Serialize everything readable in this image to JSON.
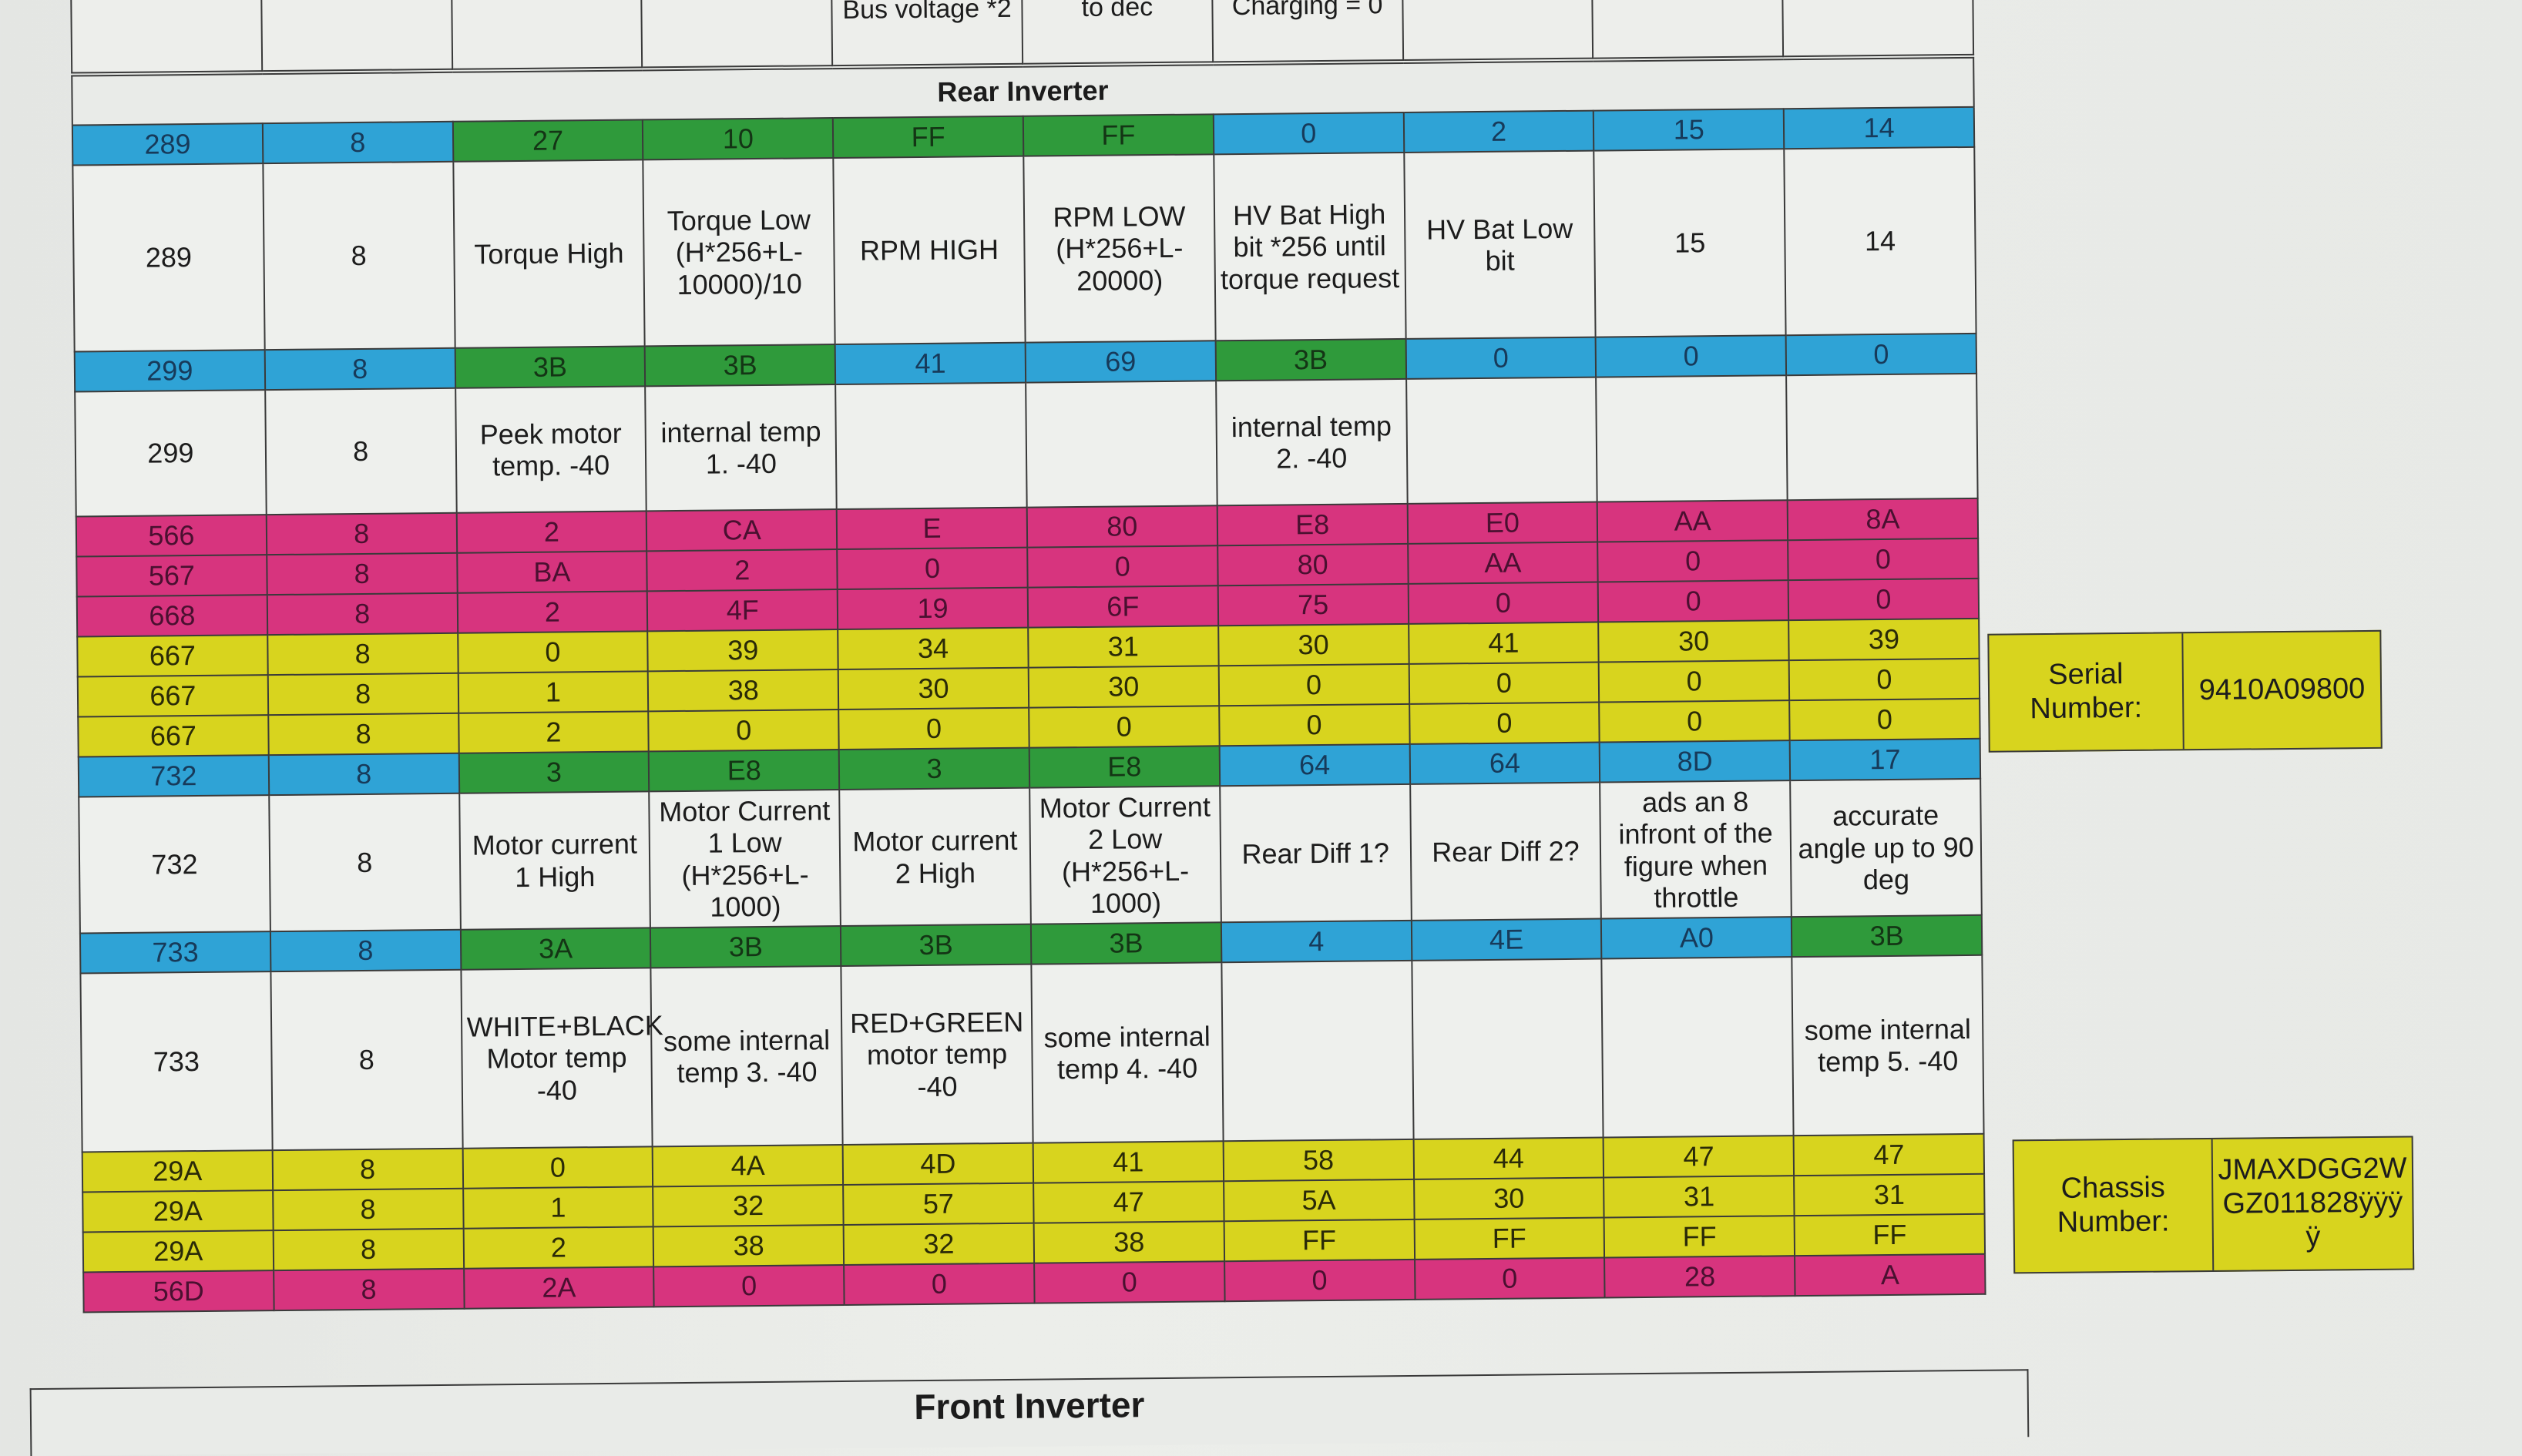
{
  "top_table": {
    "cells": [
      "",
      "",
      "",
      "",
      "Bus voltage *2",
      "to dec",
      "Charging = 0",
      "",
      "",
      ""
    ]
  },
  "section_title": "Rear Inverter",
  "colors": {
    "b": "#2fa3d6",
    "g": "#2f9a3b",
    "m": "#d7347e",
    "y": "#d8d41e"
  },
  "rows": [
    {
      "kind": "hex",
      "cells": [
        "289",
        "8",
        "27",
        "10",
        "FF",
        "FF",
        "0",
        "2",
        "15",
        "14"
      ],
      "colors": [
        "b",
        "b",
        "g",
        "g",
        "g",
        "g",
        "b",
        "b",
        "b",
        "b"
      ]
    },
    {
      "kind": "desc",
      "cells": [
        "289",
        "8",
        "Torque High",
        "Torque Low (H*256+L-10000)/10",
        "RPM HIGH",
        "RPM LOW (H*256+L-20000)",
        "HV Bat High bit *256 until torque request",
        "HV Bat Low bit",
        "15",
        "14"
      ]
    },
    {
      "kind": "hex",
      "cells": [
        "299",
        "8",
        "3B",
        "3B",
        "41",
        "69",
        "3B",
        "0",
        "0",
        "0"
      ],
      "colors": [
        "b",
        "b",
        "g",
        "g",
        "b",
        "b",
        "g",
        "b",
        "b",
        "b"
      ]
    },
    {
      "kind": "desc",
      "cells": [
        "299",
        "8",
        "Peek motor temp. -40",
        "internal temp 1. -40",
        "",
        "",
        "internal temp 2. -40",
        "",
        "",
        ""
      ]
    },
    {
      "kind": "hex",
      "cells": [
        "566",
        "8",
        "2",
        "CA",
        "E",
        "80",
        "E8",
        "E0",
        "AA",
        "8A"
      ],
      "colors": [
        "m",
        "m",
        "m",
        "m",
        "m",
        "m",
        "m",
        "m",
        "m",
        "m"
      ]
    },
    {
      "kind": "hex",
      "cells": [
        "567",
        "8",
        "BA",
        "2",
        "0",
        "0",
        "80",
        "AA",
        "0",
        "0"
      ],
      "colors": [
        "m",
        "m",
        "m",
        "m",
        "m",
        "m",
        "m",
        "m",
        "m",
        "m"
      ]
    },
    {
      "kind": "hex",
      "cells": [
        "668",
        "8",
        "2",
        "4F",
        "19",
        "6F",
        "75",
        "0",
        "0",
        "0"
      ],
      "colors": [
        "m",
        "m",
        "m",
        "m",
        "m",
        "m",
        "m",
        "m",
        "m",
        "m"
      ]
    },
    {
      "kind": "hex",
      "cells": [
        "667",
        "8",
        "0",
        "39",
        "34",
        "31",
        "30",
        "41",
        "30",
        "39"
      ],
      "colors": [
        "y",
        "y",
        "y",
        "y",
        "y",
        "y",
        "y",
        "y",
        "y",
        "y"
      ]
    },
    {
      "kind": "hex",
      "cells": [
        "667",
        "8",
        "1",
        "38",
        "30",
        "30",
        "0",
        "0",
        "0",
        "0"
      ],
      "colors": [
        "y",
        "y",
        "y",
        "y",
        "y",
        "y",
        "y",
        "y",
        "y",
        "y"
      ]
    },
    {
      "kind": "hex",
      "cells": [
        "667",
        "8",
        "2",
        "0",
        "0",
        "0",
        "0",
        "0",
        "0",
        "0"
      ],
      "colors": [
        "y",
        "y",
        "y",
        "y",
        "y",
        "y",
        "y",
        "y",
        "y",
        "y"
      ]
    },
    {
      "kind": "hex",
      "cells": [
        "732",
        "8",
        "3",
        "E8",
        "3",
        "E8",
        "64",
        "64",
        "8D",
        "17"
      ],
      "colors": [
        "b",
        "b",
        "g",
        "g",
        "g",
        "g",
        "b",
        "b",
        "b",
        "b"
      ]
    },
    {
      "kind": "desc",
      "cells": [
        "732",
        "8",
        "Motor current 1 High",
        "Motor Current 1 Low (H*256+L-1000)",
        "Motor current 2 High",
        "Motor Current 2 Low (H*256+L-1000)",
        "Rear Diff 1?",
        "Rear Diff 2?",
        "ads an 8 infront of the figure when throttle",
        "accurate angle up to 90 deg"
      ]
    },
    {
      "kind": "hex",
      "cells": [
        "733",
        "8",
        "3A",
        "3B",
        "3B",
        "3B",
        "4",
        "4E",
        "A0",
        "3B"
      ],
      "colors": [
        "b",
        "b",
        "g",
        "g",
        "g",
        "g",
        "b",
        "b",
        "b",
        "g"
      ]
    },
    {
      "kind": "desc",
      "cells": [
        "733",
        "8",
        "WHITE+BLACK Motor temp -40",
        "some internal temp 3. -40",
        "RED+GREEN motor temp -40",
        "some internal temp 4. -40",
        "",
        "",
        "",
        "some internal temp 5. -40"
      ]
    },
    {
      "kind": "hex",
      "cells": [
        "29A",
        "8",
        "0",
        "4A",
        "4D",
        "41",
        "58",
        "44",
        "47",
        "47"
      ],
      "colors": [
        "y",
        "y",
        "y",
        "y",
        "y",
        "y",
        "y",
        "y",
        "y",
        "y"
      ]
    },
    {
      "kind": "hex",
      "cells": [
        "29A",
        "8",
        "1",
        "32",
        "57",
        "47",
        "5A",
        "30",
        "31",
        "31"
      ],
      "colors": [
        "y",
        "y",
        "y",
        "y",
        "y",
        "y",
        "y",
        "y",
        "y",
        "y"
      ]
    },
    {
      "kind": "hex",
      "cells": [
        "29A",
        "8",
        "2",
        "38",
        "32",
        "38",
        "FF",
        "FF",
        "FF",
        "FF"
      ],
      "colors": [
        "y",
        "y",
        "y",
        "y",
        "y",
        "y",
        "y",
        "y",
        "y",
        "y"
      ]
    },
    {
      "kind": "hex",
      "cells": [
        "56D",
        "8",
        "2A",
        "0",
        "0",
        "0",
        "0",
        "0",
        "28",
        "A"
      ],
      "colors": [
        "m",
        "m",
        "m",
        "m",
        "m",
        "m",
        "m",
        "m",
        "m",
        "m"
      ]
    }
  ],
  "serial": {
    "label": "Serial Number:",
    "value": "9410A09800"
  },
  "chassis": {
    "label": "Chassis Number:",
    "value": "JMAXDGG2WGZ011828ÿÿÿÿ"
  },
  "next_section_title": "Front Inverter"
}
